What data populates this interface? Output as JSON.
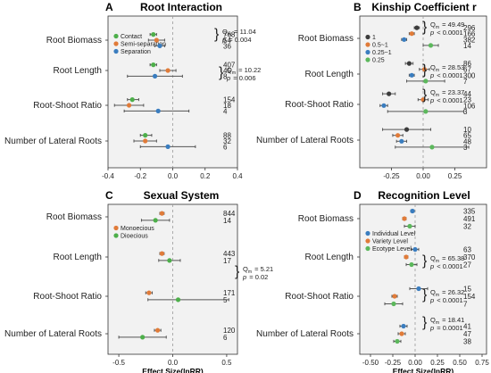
{
  "colors": {
    "green": "#4daf4a",
    "orange": "#e07b39",
    "blue": "#3a7dbf",
    "dark": "#3c3c3c",
    "light_green": "#5cb85c",
    "panel_bg": "#f2f2f2",
    "error_bar": "#555555"
  },
  "chart_data": [
    {
      "panel": "A",
      "title": "Root Interaction",
      "type": "scatter",
      "xlabel": "",
      "xlim": [
        -0.4,
        0.4
      ],
      "xticks": [
        "-0.4",
        "-0.2",
        "0.0",
        "0.2",
        "0.4"
      ],
      "zero_line": true,
      "legend_position": "left",
      "legend": [
        {
          "label": "Contact",
          "color": "#4daf4a"
        },
        {
          "label": "Semi-separation",
          "color": "#e07b39"
        },
        {
          "label": "Separation",
          "color": "#3a7dbf"
        }
      ],
      "groups": [
        {
          "label": "Root Biomass",
          "points": [
            {
              "series": "Contact",
              "mean": -0.12,
              "lo": -0.14,
              "hi": -0.1,
              "n": "768"
            },
            {
              "series": "Semi-separation",
              "mean": -0.1,
              "lo": -0.15,
              "hi": -0.05,
              "n": "54"
            },
            {
              "series": "Separation",
              "mean": -0.08,
              "lo": -0.11,
              "hi": -0.05,
              "n": "36"
            }
          ],
          "stat": {
            "q_line": "Q",
            "q_sub": "m",
            "q_value": "= 11.04",
            "p_line": "p",
            "p_value": "= 0.004"
          }
        },
        {
          "label": "Root Length",
          "points": [
            {
              "series": "Contact",
              "mean": -0.12,
              "lo": -0.14,
              "hi": -0.1,
              "n": "407"
            },
            {
              "series": "Semi-separation",
              "mean": -0.03,
              "lo": -0.08,
              "hi": 0.02,
              "n": "45"
            },
            {
              "series": "Separation",
              "mean": -0.11,
              "lo": -0.28,
              "hi": 0.06,
              "n": "8"
            }
          ],
          "stat": {
            "q_line": "Q",
            "q_sub": "m",
            "q_value": "= 10.22",
            "p_line": "p",
            "p_value": "= 0.006"
          }
        },
        {
          "label": "Root-Shoot Ratio",
          "points": [
            {
              "series": "Contact",
              "mean": -0.25,
              "lo": -0.28,
              "hi": -0.21,
              "n": "154"
            },
            {
              "series": "Semi-separation",
              "mean": -0.27,
              "lo": -0.36,
              "hi": -0.18,
              "n": "18"
            },
            {
              "series": "Separation",
              "mean": -0.09,
              "lo": -0.3,
              "hi": 0.1,
              "n": "4"
            }
          ]
        },
        {
          "label": "Number of Lateral Roots",
          "points": [
            {
              "series": "Contact",
              "mean": -0.17,
              "lo": -0.2,
              "hi": -0.13,
              "n": "88"
            },
            {
              "series": "Semi-separation",
              "mean": -0.17,
              "lo": -0.24,
              "hi": -0.1,
              "n": "32"
            },
            {
              "series": "Separation",
              "mean": -0.03,
              "lo": -0.2,
              "hi": 0.14,
              "n": "6"
            }
          ]
        }
      ]
    },
    {
      "panel": "B",
      "title": "Kinship Coefficient r",
      "type": "scatter",
      "xlabel": "",
      "xlim": [
        -0.5,
        0.5
      ],
      "xticks": [
        "-0.25",
        "0.00",
        "0.25"
      ],
      "zero_line": true,
      "legend_position": "left",
      "legend": [
        {
          "label": "1",
          "color": "#3c3c3c"
        },
        {
          "label": "0.5~1",
          "color": "#e07b39"
        },
        {
          "label": "0.25~1",
          "color": "#3a7dbf"
        },
        {
          "label": "0.25",
          "color": "#5cb85c"
        }
      ],
      "groups": [
        {
          "label": "Root Biomass",
          "points": [
            {
              "series": "1",
              "mean": -0.05,
              "lo": -0.07,
              "hi": -0.03,
              "n": "296"
            },
            {
              "series": "0.5~1",
              "mean": -0.09,
              "lo": -0.11,
              "hi": -0.07,
              "n": "166"
            },
            {
              "series": "0.25~1",
              "mean": -0.15,
              "lo": -0.17,
              "hi": -0.13,
              "n": "382"
            },
            {
              "series": "0.25",
              "mean": 0.06,
              "lo": 0.0,
              "hi": 0.12,
              "n": "14"
            }
          ],
          "stat": {
            "q_line": "Q",
            "q_sub": "m",
            "q_value": "= 49.49",
            "p_line": "p",
            "p_value": "< 0.0001"
          }
        },
        {
          "label": "Root Length",
          "points": [
            {
              "series": "1",
              "mean": -0.11,
              "lo": -0.14,
              "hi": -0.08,
              "n": "86"
            },
            {
              "series": "0.5~1",
              "mean": 0.01,
              "lo": -0.03,
              "hi": 0.05,
              "n": "67"
            },
            {
              "series": "0.25~1",
              "mean": -0.09,
              "lo": -0.11,
              "hi": -0.07,
              "n": "300"
            },
            {
              "series": "0.25",
              "mean": 0.02,
              "lo": -0.13,
              "hi": 0.17,
              "n": "7"
            }
          ],
          "stat": {
            "q_line": "Q",
            "q_sub": "m",
            "q_value": "= 28.53",
            "p_line": "p",
            "p_value": "< 0.0001"
          }
        },
        {
          "label": "Root-Shoot Ratio",
          "points": [
            {
              "series": "1",
              "mean": -0.27,
              "lo": -0.32,
              "hi": -0.22,
              "n": "44"
            },
            {
              "series": "0.5~1",
              "mean": 0.0,
              "lo": -0.04,
              "hi": 0.04,
              "n": "23"
            },
            {
              "series": "0.25~1",
              "mean": -0.31,
              "lo": -0.34,
              "hi": -0.28,
              "n": "106"
            },
            {
              "series": "0.25",
              "mean": 0.02,
              "lo": -0.28,
              "hi": 0.32,
              "n": "3"
            }
          ],
          "stat": {
            "q_line": "Q",
            "q_sub": "m",
            "q_value": "= 23.37",
            "p_line": "p",
            "p_value": "< 0.0001"
          }
        },
        {
          "label": "Number of Lateral Roots",
          "points": [
            {
              "series": "1",
              "mean": -0.13,
              "lo": -0.32,
              "hi": 0.06,
              "n": "10"
            },
            {
              "series": "0.5~1",
              "mean": -0.2,
              "lo": -0.24,
              "hi": -0.16,
              "n": "65"
            },
            {
              "series": "0.25~1",
              "mean": -0.17,
              "lo": -0.21,
              "hi": -0.13,
              "n": "48"
            },
            {
              "series": "0.25",
              "mean": 0.07,
              "lo": -0.22,
              "hi": 0.36,
              "n": "3"
            }
          ]
        }
      ]
    },
    {
      "panel": "C",
      "title": "Sexual System",
      "type": "scatter",
      "xlabel": "Effect Size(lnRR)",
      "xlim": [
        -0.6,
        0.6
      ],
      "xticks": [
        "-0.5",
        "0.0",
        "0.5"
      ],
      "zero_line": true,
      "legend_position": "left",
      "legend": [
        {
          "label": "Monoecious",
          "color": "#e07b39"
        },
        {
          "label": "Dioecious",
          "color": "#4daf4a"
        }
      ],
      "groups": [
        {
          "label": "Root Biomass",
          "points": [
            {
              "series": "Monoecious",
              "mean": -0.1,
              "lo": -0.12,
              "hi": -0.08,
              "n": "844"
            },
            {
              "series": "Dioecious",
              "mean": -0.16,
              "lo": -0.29,
              "hi": -0.03,
              "n": "14"
            }
          ]
        },
        {
          "label": "Root Length",
          "points": [
            {
              "series": "Monoecious",
              "mean": -0.1,
              "lo": -0.12,
              "hi": -0.08,
              "n": "443"
            },
            {
              "series": "Dioecious",
              "mean": -0.03,
              "lo": -0.13,
              "hi": 0.07,
              "n": "17"
            }
          ]
        },
        {
          "label": "Root-Shoot Ratio",
          "points": [
            {
              "series": "Monoecious",
              "mean": -0.22,
              "lo": -0.25,
              "hi": -0.19,
              "n": "171"
            },
            {
              "series": "Dioecious",
              "mean": 0.05,
              "lo": -0.23,
              "hi": 0.52,
              "n": "5"
            }
          ],
          "stat": {
            "q_line": "Q",
            "q_sub": "m",
            "q_value": "= 5.21",
            "p_line": "p",
            "p_value": "= 0.02"
          }
        },
        {
          "label": "Number of Lateral Roots",
          "points": [
            {
              "series": "Monoecious",
              "mean": -0.14,
              "lo": -0.17,
              "hi": -0.11,
              "n": "120"
            },
            {
              "series": "Dioecious",
              "mean": -0.28,
              "lo": -0.5,
              "hi": -0.06,
              "n": "6"
            }
          ]
        }
      ]
    },
    {
      "panel": "D",
      "title": "Recognition Level",
      "type": "scatter",
      "xlabel": "Effect Size(lnRR)",
      "xlim": [
        -0.62,
        0.8
      ],
      "xticks": [
        "-0.50",
        "-0.25",
        "0.00",
        "0.25",
        "0.50",
        "0.75"
      ],
      "zero_line": true,
      "legend_position": "left",
      "legend": [
        {
          "label": "Individual Level",
          "color": "#3a7dbf"
        },
        {
          "label": "Variety Level",
          "color": "#e07b39"
        },
        {
          "label": "Ecotype Level",
          "color": "#5cb85c"
        }
      ],
      "groups": [
        {
          "label": "Root Biomass",
          "points": [
            {
              "series": "Individual Level",
              "mean": -0.03,
              "lo": -0.05,
              "hi": -0.01,
              "n": "335"
            },
            {
              "series": "Variety Level",
              "mean": -0.12,
              "lo": -0.14,
              "hi": -0.1,
              "n": "491"
            },
            {
              "series": "Ecotype Level",
              "mean": -0.06,
              "lo": -0.12,
              "hi": 0.0,
              "n": "32"
            }
          ],
          "stat": {
            "q_line": "Q",
            "q_sub": "m",
            "q_value": "= 65.38",
            "p_line": "p",
            "p_value": "< 0.0001"
          }
        },
        {
          "label": "Root Length",
          "points": [
            {
              "series": "Individual Level",
              "mean": 0.0,
              "lo": -0.04,
              "hi": 0.04,
              "n": "63"
            },
            {
              "series": "Variety Level",
              "mean": -0.1,
              "lo": -0.12,
              "hi": -0.08,
              "n": "370"
            },
            {
              "series": "Ecotype Level",
              "mean": -0.04,
              "lo": -0.1,
              "hi": 0.02,
              "n": "27"
            }
          ],
          "stat": {
            "q_line": "Q",
            "q_sub": "m",
            "q_value": "= 26.32",
            "p_line": "p",
            "p_value": "< 0.0001"
          }
        },
        {
          "label": "Root-Shoot Ratio",
          "points": [
            {
              "series": "Individual Level",
              "mean": 0.04,
              "lo": -0.06,
              "hi": 0.14,
              "n": "15"
            },
            {
              "series": "Variety Level",
              "mean": -0.23,
              "lo": -0.26,
              "hi": -0.2,
              "n": "154"
            },
            {
              "series": "Ecotype Level",
              "mean": -0.24,
              "lo": -0.34,
              "hi": -0.14,
              "n": "7"
            }
          ],
          "stat": {
            "q_line": "Q",
            "q_sub": "m",
            "q_value": "= 18.41",
            "p_line": "p",
            "p_value": "= 0.0001"
          }
        },
        {
          "label": "Number of Lateral Roots",
          "points": [
            {
              "series": "Individual Level",
              "mean": -0.13,
              "lo": -0.17,
              "hi": -0.09,
              "n": "41"
            },
            {
              "series": "Variety Level",
              "mean": -0.15,
              "lo": -0.19,
              "hi": -0.11,
              "n": "47"
            },
            {
              "series": "Ecotype Level",
              "mean": -0.2,
              "lo": -0.24,
              "hi": -0.16,
              "n": "38"
            }
          ]
        }
      ]
    }
  ]
}
